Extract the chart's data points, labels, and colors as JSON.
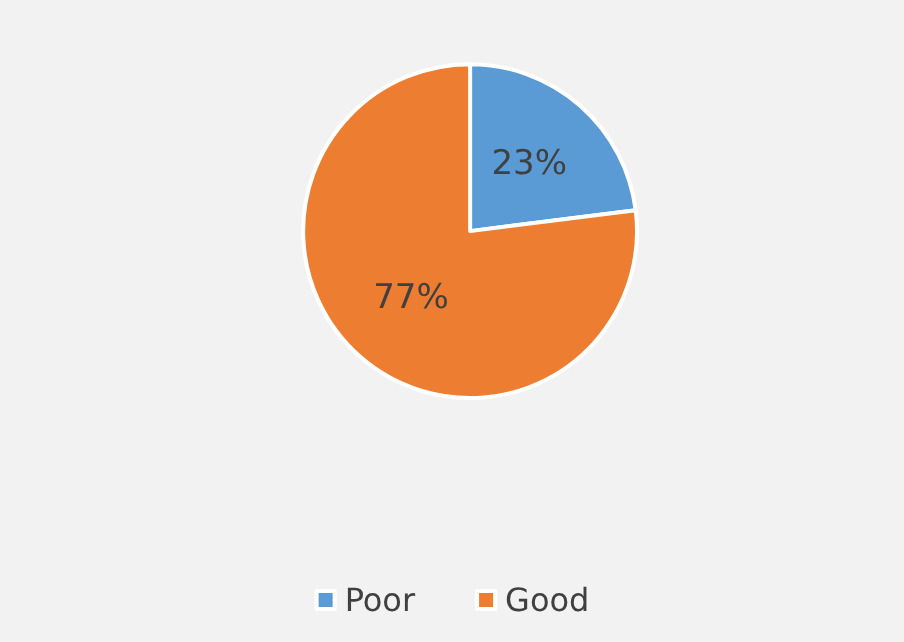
{
  "chart_data": {
    "type": "pie",
    "categories": [
      "Poor",
      "Good"
    ],
    "values": [
      23,
      77
    ],
    "colors": [
      "#5b9bd5",
      "#ed7d31"
    ],
    "value_labels": [
      "23%",
      "77%"
    ],
    "legend": "bottom"
  }
}
